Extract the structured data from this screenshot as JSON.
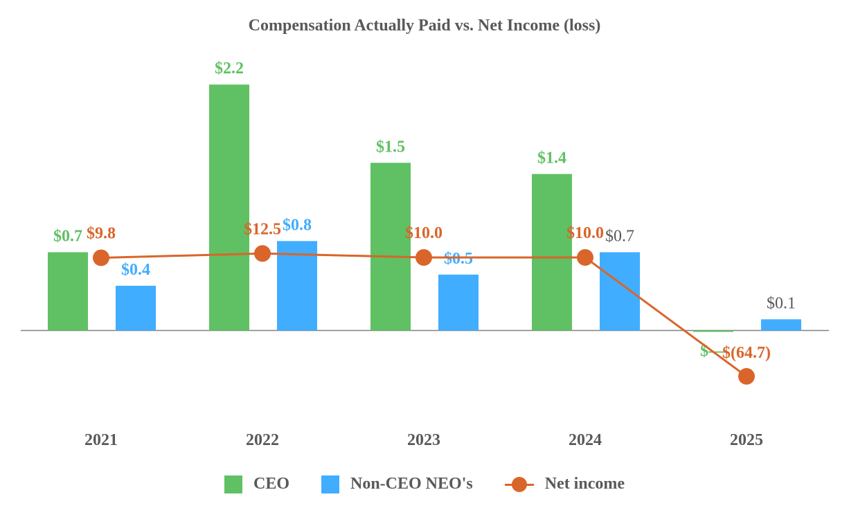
{
  "chart_data": {
    "type": "bar",
    "title": "Compensation Actually Paid vs. Net Income (loss)",
    "categories": [
      "2021",
      "2022",
      "2023",
      "2024",
      "2025"
    ],
    "series": [
      {
        "name": "CEO",
        "type": "bar",
        "color": "#5fc163",
        "values": [
          0.7,
          2.2,
          1.5,
          1.4,
          0.0
        ],
        "labels": [
          "$0.7",
          "$2.2",
          "$1.5",
          "$1.4",
          "$—"
        ]
      },
      {
        "name": "Non-CEO NEO's",
        "type": "bar",
        "color": "#41adff",
        "values": [
          0.4,
          0.8,
          0.5,
          0.7,
          0.1
        ],
        "labels": [
          "$0.4",
          "$0.8",
          "$0.5",
          "$0.7",
          "$0.1"
        ]
      },
      {
        "name": "Net income",
        "type": "line",
        "color": "#d9652a",
        "values": [
          9.8,
          12.5,
          10.0,
          10.0,
          -64.7
        ],
        "labels": [
          "$9.8",
          "$12.5",
          "$10.0",
          "$10.0",
          "$(64.7)"
        ]
      }
    ],
    "legend_position": "bottom",
    "grid": false
  }
}
